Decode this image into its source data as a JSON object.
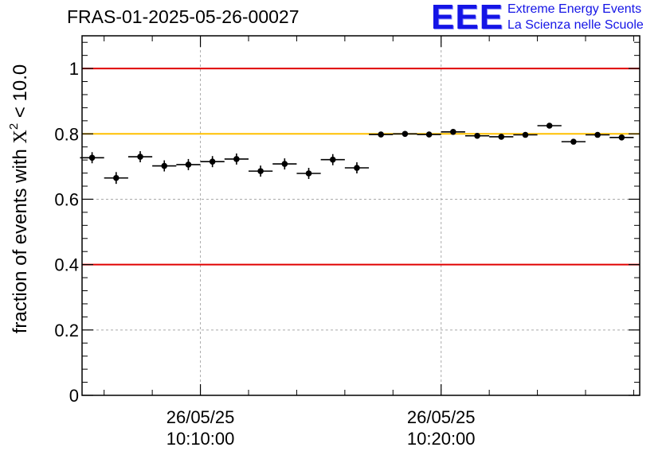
{
  "header": {
    "run_id": "FRAS-01-2025-05-26-00027",
    "logo_text": "EEE",
    "logo_line1": "Extreme Energy Events",
    "logo_line2": "La Scienza nelle Scuole",
    "logo_color": "#1414e6"
  },
  "chart_data": {
    "type": "scatter",
    "title": "FRAS-01-2025-05-26-00027",
    "ylabel": "fraction of events with χ² < 10.0",
    "ylabel_prefix": "fraction of events with ",
    "ylabel_chi": "X",
    "ylabel_sup": "2",
    "ylabel_suffix": " < 10.0",
    "xlabel": "",
    "ylim": [
      0,
      1.1
    ],
    "yticks": [
      "0",
      "0.2",
      "0.4",
      "0.6",
      "0.8",
      "1"
    ],
    "ytick_values": [
      0,
      0.2,
      0.4,
      0.6,
      0.8,
      1.0
    ],
    "xlim": [
      "26/05/25 10:05:05",
      "26/05/25 10:28:15"
    ],
    "xticks": [
      {
        "date": "26/05/25",
        "time": "10:10:00"
      },
      {
        "date": "26/05/25",
        "time": "10:20:00"
      }
    ],
    "grid": true,
    "reference_lines": [
      {
        "y": 1.0,
        "color": "#e00000"
      },
      {
        "y": 0.8,
        "color": "#ffc000"
      },
      {
        "y": 0.4,
        "color": "#e00000"
      }
    ],
    "x_bin_width": "1 min",
    "series": [
      {
        "color": "#000000",
        "x": [
          "10:05:30",
          "10:06:30",
          "10:07:30",
          "10:08:30",
          "10:09:30",
          "10:10:30",
          "10:11:30",
          "10:12:30",
          "10:13:30",
          "10:14:30",
          "10:15:30",
          "10:16:30",
          "10:17:30",
          "10:18:30",
          "10:19:30",
          "10:20:30",
          "10:21:30",
          "10:22:30",
          "10:23:30",
          "10:24:30",
          "10:25:30",
          "10:26:30",
          "10:27:30"
        ],
        "y": [
          0.727,
          0.665,
          0.73,
          0.702,
          0.706,
          0.715,
          0.723,
          0.686,
          0.708,
          0.679,
          0.721,
          0.696,
          0.798,
          0.8,
          0.798,
          0.806,
          0.794,
          0.791,
          0.797,
          0.825,
          0.776,
          0.797,
          0.789
        ],
        "yerr": [
          0.017,
          0.018,
          0.017,
          0.017,
          0.017,
          0.017,
          0.017,
          0.017,
          0.017,
          0.017,
          0.017,
          0.017,
          0.005,
          0.005,
          0.005,
          0.005,
          0.005,
          0.005,
          0.005,
          0.005,
          0.005,
          0.005,
          0.005
        ]
      }
    ]
  }
}
